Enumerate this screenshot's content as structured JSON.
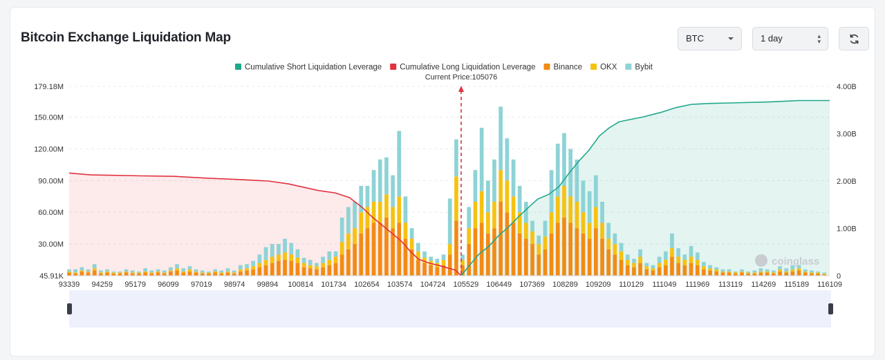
{
  "header": {
    "title": "Bitcoin Exchange Liquidation Map",
    "coin_select": "BTC",
    "range_select": "1 day"
  },
  "colors": {
    "short_line": "#1fa88a",
    "long_line": "#e0313e",
    "binance": "#f28b14",
    "okx": "#f5c211",
    "bybit": "#8ed3d6"
  },
  "chart_data": {
    "type": "bar",
    "title": "Bitcoin Exchange Liquidation Map",
    "current_price_label": "Current Price:105076",
    "current_price": 105076,
    "legend": [
      {
        "name": "Cumulative Short Liquidation Leverage",
        "color": "#1fa88a",
        "shape": "square"
      },
      {
        "name": "Cumulative Long Liquidation Leverage",
        "color": "#e0313e",
        "shape": "square"
      },
      {
        "name": "Binance",
        "color": "#f28b14",
        "shape": "square"
      },
      {
        "name": "OKX",
        "color": "#f5c211",
        "shape": "square"
      },
      {
        "name": "Bybit",
        "color": "#8ed3d6",
        "shape": "square"
      }
    ],
    "x_range": [
      93339,
      116109
    ],
    "x_ticks": [
      "93339",
      "94259",
      "95179",
      "96099",
      "97019",
      "98974",
      "99894",
      "100814",
      "101734",
      "102654",
      "103574",
      "104724",
      "105529",
      "106449",
      "107369",
      "108289",
      "109209",
      "110129",
      "111049",
      "111969",
      "113119",
      "114269",
      "115189",
      "116109"
    ],
    "y_left_ticks": [
      "45.91K",
      "30.00M",
      "60.00M",
      "90.00M",
      "120.00M",
      "150.00M",
      "179.18M"
    ],
    "y_left_values": [
      0.04591,
      30,
      60,
      90,
      120,
      150,
      179.18
    ],
    "y_left_range": [
      0,
      179.18
    ],
    "y_right_ticks": [
      "0",
      "1.00B",
      "2.00B",
      "3.00B",
      "4.00B"
    ],
    "y_right_values": [
      0,
      1,
      2,
      3,
      4
    ],
    "y_right_range": [
      0,
      4
    ],
    "x_step": 190,
    "bars": [
      {
        "x": 93339,
        "binance": 3,
        "okx": 1,
        "bybit": 2
      },
      {
        "x": 93529,
        "binance": 2,
        "okx": 1,
        "bybit": 3
      },
      {
        "x": 93719,
        "binance": 4,
        "okx": 1,
        "bybit": 3
      },
      {
        "x": 93909,
        "binance": 3,
        "okx": 1,
        "bybit": 2
      },
      {
        "x": 94099,
        "binance": 5,
        "okx": 2,
        "bybit": 4
      },
      {
        "x": 94289,
        "binance": 2,
        "okx": 1,
        "bybit": 2
      },
      {
        "x": 94479,
        "binance": 3,
        "okx": 1,
        "bybit": 2
      },
      {
        "x": 94669,
        "binance": 2,
        "okx": 1,
        "bybit": 1
      },
      {
        "x": 94859,
        "binance": 2,
        "okx": 1,
        "bybit": 1
      },
      {
        "x": 95049,
        "binance": 3,
        "okx": 1,
        "bybit": 2
      },
      {
        "x": 95239,
        "binance": 2,
        "okx": 1,
        "bybit": 2
      },
      {
        "x": 95429,
        "binance": 2,
        "okx": 1,
        "bybit": 1
      },
      {
        "x": 95619,
        "binance": 3,
        "okx": 1,
        "bybit": 3
      },
      {
        "x": 95809,
        "binance": 2,
        "okx": 1,
        "bybit": 2
      },
      {
        "x": 95999,
        "binance": 3,
        "okx": 1,
        "bybit": 2
      },
      {
        "x": 96189,
        "binance": 2,
        "okx": 1,
        "bybit": 2
      },
      {
        "x": 96379,
        "binance": 4,
        "okx": 1,
        "bybit": 3
      },
      {
        "x": 96569,
        "binance": 5,
        "okx": 2,
        "bybit": 4
      },
      {
        "x": 96759,
        "binance": 3,
        "okx": 1,
        "bybit": 3
      },
      {
        "x": 96949,
        "binance": 4,
        "okx": 2,
        "bybit": 3
      },
      {
        "x": 97139,
        "binance": 3,
        "okx": 1,
        "bybit": 2
      },
      {
        "x": 97329,
        "binance": 2,
        "okx": 1,
        "bybit": 2
      },
      {
        "x": 97519,
        "binance": 2,
        "okx": 1,
        "bybit": 1
      },
      {
        "x": 97709,
        "binance": 3,
        "okx": 1,
        "bybit": 2
      },
      {
        "x": 97899,
        "binance": 2,
        "okx": 1,
        "bybit": 2
      },
      {
        "x": 98089,
        "binance": 3,
        "okx": 1,
        "bybit": 3
      },
      {
        "x": 98279,
        "binance": 2,
        "okx": 1,
        "bybit": 2
      },
      {
        "x": 98469,
        "binance": 4,
        "okx": 2,
        "bybit": 4
      },
      {
        "x": 98659,
        "binance": 5,
        "okx": 2,
        "bybit": 4
      },
      {
        "x": 98849,
        "binance": 6,
        "okx": 3,
        "bybit": 5
      },
      {
        "x": 99039,
        "binance": 8,
        "okx": 4,
        "bybit": 8
      },
      {
        "x": 99229,
        "binance": 10,
        "okx": 5,
        "bybit": 12
      },
      {
        "x": 99419,
        "binance": 12,
        "okx": 6,
        "bybit": 12
      },
      {
        "x": 99609,
        "binance": 14,
        "okx": 6,
        "bybit": 10
      },
      {
        "x": 99799,
        "binance": 15,
        "okx": 7,
        "bybit": 13
      },
      {
        "x": 99989,
        "binance": 14,
        "okx": 6,
        "bybit": 11
      },
      {
        "x": 100179,
        "binance": 12,
        "okx": 5,
        "bybit": 8
      },
      {
        "x": 100369,
        "binance": 8,
        "okx": 4,
        "bybit": 5
      },
      {
        "x": 100559,
        "binance": 7,
        "okx": 3,
        "bybit": 5
      },
      {
        "x": 100749,
        "binance": 6,
        "okx": 3,
        "bybit": 3
      },
      {
        "x": 100939,
        "binance": 8,
        "okx": 4,
        "bybit": 6
      },
      {
        "x": 101129,
        "binance": 10,
        "okx": 5,
        "bybit": 8
      },
      {
        "x": 101319,
        "binance": 12,
        "okx": 6,
        "bybit": 5
      },
      {
        "x": 101509,
        "binance": 20,
        "okx": 12,
        "bybit": 23
      },
      {
        "x": 101699,
        "binance": 25,
        "okx": 15,
        "bybit": 25
      },
      {
        "x": 101889,
        "binance": 30,
        "okx": 15,
        "bybit": 25
      },
      {
        "x": 102079,
        "binance": 40,
        "okx": 20,
        "bybit": 25
      },
      {
        "x": 102269,
        "binance": 45,
        "okx": 20,
        "bybit": 20
      },
      {
        "x": 102459,
        "binance": 50,
        "okx": 20,
        "bybit": 30
      },
      {
        "x": 102649,
        "binance": 50,
        "okx": 20,
        "bybit": 40
      },
      {
        "x": 102839,
        "binance": 55,
        "okx": 22,
        "bybit": 35
      },
      {
        "x": 103029,
        "binance": 45,
        "okx": 20,
        "bybit": 30
      },
      {
        "x": 103219,
        "binance": 50,
        "okx": 25,
        "bybit": 62
      },
      {
        "x": 103409,
        "binance": 35,
        "okx": 15,
        "bybit": 25
      },
      {
        "x": 103599,
        "binance": 25,
        "okx": 10,
        "bybit": 10
      },
      {
        "x": 103789,
        "binance": 15,
        "okx": 8,
        "bybit": 8
      },
      {
        "x": 103979,
        "binance": 12,
        "okx": 5,
        "bybit": 6
      },
      {
        "x": 104169,
        "binance": 10,
        "okx": 4,
        "bybit": 4
      },
      {
        "x": 104359,
        "binance": 8,
        "okx": 4,
        "bybit": 4
      },
      {
        "x": 104549,
        "binance": 10,
        "okx": 5,
        "bybit": 5
      },
      {
        "x": 104739,
        "binance": 20,
        "okx": 10,
        "bybit": 43
      },
      {
        "x": 104929,
        "binance": 52,
        "okx": 42,
        "bybit": 35
      },
      {
        "x": 105119,
        "binance": 10,
        "okx": 5,
        "bybit": 5
      },
      {
        "x": 105309,
        "binance": 30,
        "okx": 15,
        "bybit": 20
      },
      {
        "x": 105499,
        "binance": 45,
        "okx": 25,
        "bybit": 30
      },
      {
        "x": 105689,
        "binance": 50,
        "okx": 30,
        "bybit": 60
      },
      {
        "x": 105879,
        "binance": 40,
        "okx": 20,
        "bybit": 30
      },
      {
        "x": 106069,
        "binance": 45,
        "okx": 25,
        "bybit": 40
      },
      {
        "x": 106259,
        "binance": 70,
        "okx": 30,
        "bybit": 60
      },
      {
        "x": 106449,
        "binance": 60,
        "okx": 30,
        "bybit": 40
      },
      {
        "x": 106639,
        "binance": 50,
        "okx": 25,
        "bybit": 35
      },
      {
        "x": 106829,
        "binance": 40,
        "okx": 20,
        "bybit": 25
      },
      {
        "x": 107019,
        "binance": 35,
        "okx": 15,
        "bybit": 20
      },
      {
        "x": 107209,
        "binance": 30,
        "okx": 12,
        "bybit": 10
      },
      {
        "x": 107399,
        "binance": 20,
        "okx": 10,
        "bybit": 8
      },
      {
        "x": 107589,
        "binance": 25,
        "okx": 12,
        "bybit": 15
      },
      {
        "x": 107779,
        "binance": 40,
        "okx": 20,
        "bybit": 40
      },
      {
        "x": 107969,
        "binance": 50,
        "okx": 25,
        "bybit": 50
      },
      {
        "x": 108159,
        "binance": 55,
        "okx": 30,
        "bybit": 50
      },
      {
        "x": 108349,
        "binance": 50,
        "okx": 25,
        "bybit": 45
      },
      {
        "x": 108539,
        "binance": 45,
        "okx": 25,
        "bybit": 40
      },
      {
        "x": 108729,
        "binance": 40,
        "okx": 20,
        "bybit": 30
      },
      {
        "x": 108919,
        "binance": 35,
        "okx": 15,
        "bybit": 30
      },
      {
        "x": 109109,
        "binance": 45,
        "okx": 20,
        "bybit": 30
      },
      {
        "x": 109299,
        "binance": 35,
        "okx": 15,
        "bybit": 20
      },
      {
        "x": 109489,
        "binance": 25,
        "okx": 10,
        "bybit": 15
      },
      {
        "x": 109679,
        "binance": 20,
        "okx": 10,
        "bybit": 10
      },
      {
        "x": 109869,
        "binance": 15,
        "okx": 8,
        "bybit": 8
      },
      {
        "x": 110059,
        "binance": 10,
        "okx": 5,
        "bybit": 5
      },
      {
        "x": 110249,
        "binance": 8,
        "okx": 4,
        "bybit": 4
      },
      {
        "x": 110439,
        "binance": 12,
        "okx": 6,
        "bybit": 7
      },
      {
        "x": 110629,
        "binance": 6,
        "okx": 3,
        "bybit": 3
      },
      {
        "x": 110819,
        "binance": 5,
        "okx": 2,
        "bybit": 3
      },
      {
        "x": 111009,
        "binance": 8,
        "okx": 4,
        "bybit": 6
      },
      {
        "x": 111199,
        "binance": 10,
        "okx": 5,
        "bybit": 8
      },
      {
        "x": 111389,
        "binance": 18,
        "okx": 8,
        "bybit": 14
      },
      {
        "x": 111579,
        "binance": 12,
        "okx": 6,
        "bybit": 8
      },
      {
        "x": 111769,
        "binance": 10,
        "okx": 5,
        "bybit": 5
      },
      {
        "x": 111959,
        "binance": 12,
        "okx": 6,
        "bybit": 10
      },
      {
        "x": 112149,
        "binance": 10,
        "okx": 5,
        "bybit": 7
      },
      {
        "x": 112339,
        "binance": 6,
        "okx": 3,
        "bybit": 4
      },
      {
        "x": 112529,
        "binance": 5,
        "okx": 2,
        "bybit": 3
      },
      {
        "x": 112719,
        "binance": 4,
        "okx": 2,
        "bybit": 2
      },
      {
        "x": 112909,
        "binance": 3,
        "okx": 1,
        "bybit": 2
      },
      {
        "x": 113099,
        "binance": 3,
        "okx": 1,
        "bybit": 2
      },
      {
        "x": 113289,
        "binance": 2,
        "okx": 1,
        "bybit": 1
      },
      {
        "x": 113479,
        "binance": 3,
        "okx": 1,
        "bybit": 2
      },
      {
        "x": 113669,
        "binance": 2,
        "okx": 1,
        "bybit": 1
      },
      {
        "x": 113859,
        "binance": 2,
        "okx": 1,
        "bybit": 2
      },
      {
        "x": 114049,
        "binance": 3,
        "okx": 1,
        "bybit": 3
      },
      {
        "x": 114239,
        "binance": 3,
        "okx": 1,
        "bybit": 2
      },
      {
        "x": 114429,
        "binance": 2,
        "okx": 1,
        "bybit": 2
      },
      {
        "x": 114619,
        "binance": 4,
        "okx": 2,
        "bybit": 3
      },
      {
        "x": 114809,
        "binance": 3,
        "okx": 1,
        "bybit": 3
      },
      {
        "x": 114999,
        "binance": 4,
        "okx": 2,
        "bybit": 4
      },
      {
        "x": 115189,
        "binance": 5,
        "okx": 2,
        "bybit": 3
      },
      {
        "x": 115379,
        "binance": 3,
        "okx": 1,
        "bybit": 2
      },
      {
        "x": 115569,
        "binance": 2,
        "okx": 1,
        "bybit": 2
      },
      {
        "x": 115759,
        "binance": 2,
        "okx": 1,
        "bybit": 1
      },
      {
        "x": 115949,
        "binance": 1,
        "okx": 1,
        "bybit": 1
      }
    ],
    "long_cumulative": {
      "unit": "B",
      "points": [
        [
          93339,
          2.17
        ],
        [
          94000,
          2.13
        ],
        [
          95500,
          2.11
        ],
        [
          96500,
          2.1
        ],
        [
          97500,
          2.06
        ],
        [
          98500,
          2.03
        ],
        [
          99300,
          2.0
        ],
        [
          99900,
          1.94
        ],
        [
          100800,
          1.8
        ],
        [
          101300,
          1.75
        ],
        [
          101734,
          1.65
        ],
        [
          102100,
          1.45
        ],
        [
          102400,
          1.25
        ],
        [
          102654,
          1.1
        ],
        [
          103000,
          0.9
        ],
        [
          103300,
          0.72
        ],
        [
          103574,
          0.5
        ],
        [
          103800,
          0.35
        ],
        [
          104100,
          0.27
        ],
        [
          104500,
          0.2
        ],
        [
          104900,
          0.12
        ],
        [
          105076,
          0
        ]
      ]
    },
    "short_cumulative": {
      "unit": "B",
      "points": [
        [
          105076,
          0
        ],
        [
          105300,
          0.2
        ],
        [
          105600,
          0.45
        ],
        [
          105900,
          0.62
        ],
        [
          106200,
          0.85
        ],
        [
          106449,
          1.0
        ],
        [
          106800,
          1.25
        ],
        [
          107100,
          1.45
        ],
        [
          107369,
          1.62
        ],
        [
          107700,
          1.72
        ],
        [
          108000,
          1.88
        ],
        [
          108289,
          2.15
        ],
        [
          108600,
          2.42
        ],
        [
          108900,
          2.65
        ],
        [
          109209,
          2.95
        ],
        [
          109500,
          3.12
        ],
        [
          109800,
          3.25
        ],
        [
          110129,
          3.3
        ],
        [
          110500,
          3.35
        ],
        [
          111049,
          3.45
        ],
        [
          111500,
          3.55
        ],
        [
          111969,
          3.62
        ],
        [
          112500,
          3.64
        ],
        [
          113119,
          3.65
        ],
        [
          114269,
          3.67
        ],
        [
          115189,
          3.7
        ],
        [
          116109,
          3.7
        ]
      ]
    },
    "grid": true,
    "watermark": "coinglass"
  }
}
